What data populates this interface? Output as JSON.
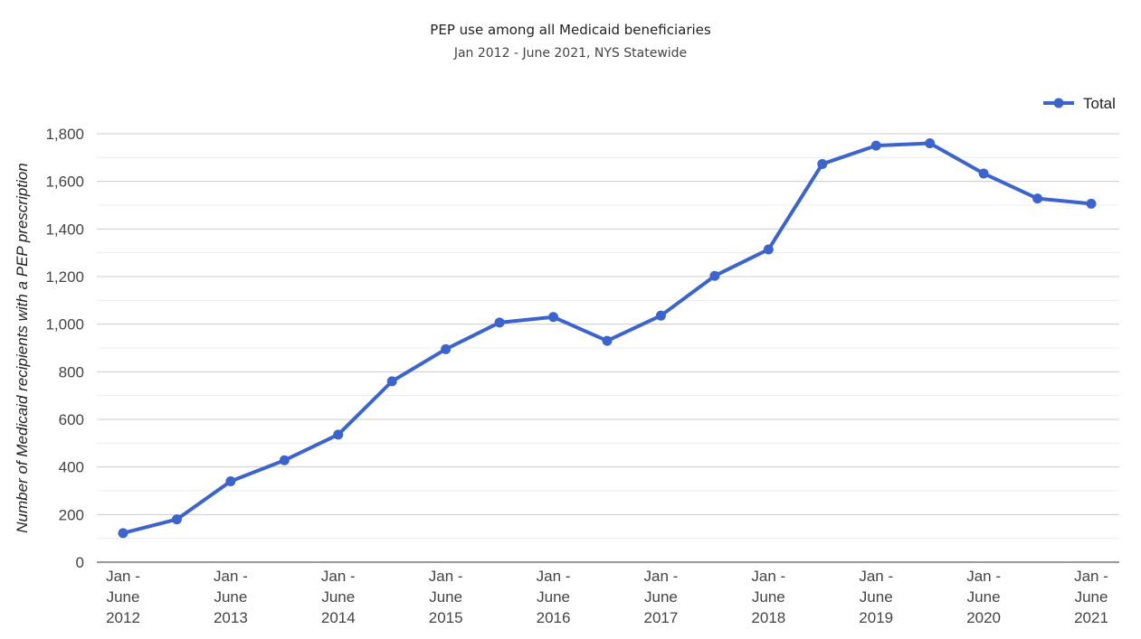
{
  "chart_data": {
    "type": "line",
    "title": "PEP use among all Medicaid beneficiaries",
    "subtitle": "Jan 2012 - June 2021, NYS Statewide",
    "ylabel": "Number of Medicaid recipients with a PEP prescription",
    "xlabel": "",
    "ylim": [
      0,
      1800
    ],
    "yticks": [
      "0",
      "200",
      "400",
      "600",
      "800",
      "1,000",
      "1,200",
      "1,400",
      "1,600",
      "1,800"
    ],
    "ytick_values": [
      0,
      200,
      400,
      600,
      800,
      1000,
      1200,
      1400,
      1600,
      1800
    ],
    "grid": true,
    "legend_position": "top-right",
    "x_labels": [
      [
        "Jan -",
        "June",
        "2012"
      ],
      [
        "Jan -",
        "June",
        "2013"
      ],
      [
        "Jan -",
        "June",
        "2014"
      ],
      [
        "Jan -",
        "June",
        "2015"
      ],
      [
        "Jan -",
        "June",
        "2016"
      ],
      [
        "Jan -",
        "June",
        "2017"
      ],
      [
        "Jan -",
        "June",
        "2018"
      ],
      [
        "Jan -",
        "June",
        "2019"
      ],
      [
        "Jan -",
        "June",
        "2020"
      ],
      [
        "Jan -",
        "June",
        "2021"
      ]
    ],
    "series": [
      {
        "name": "Total",
        "color": "#3c64cc",
        "values": [
          122,
          180,
          340,
          428,
          536,
          760,
          895,
          1007,
          1030,
          930,
          1036,
          1203,
          1314,
          1673,
          1750,
          1760,
          1633,
          1528,
          1506
        ]
      }
    ]
  }
}
